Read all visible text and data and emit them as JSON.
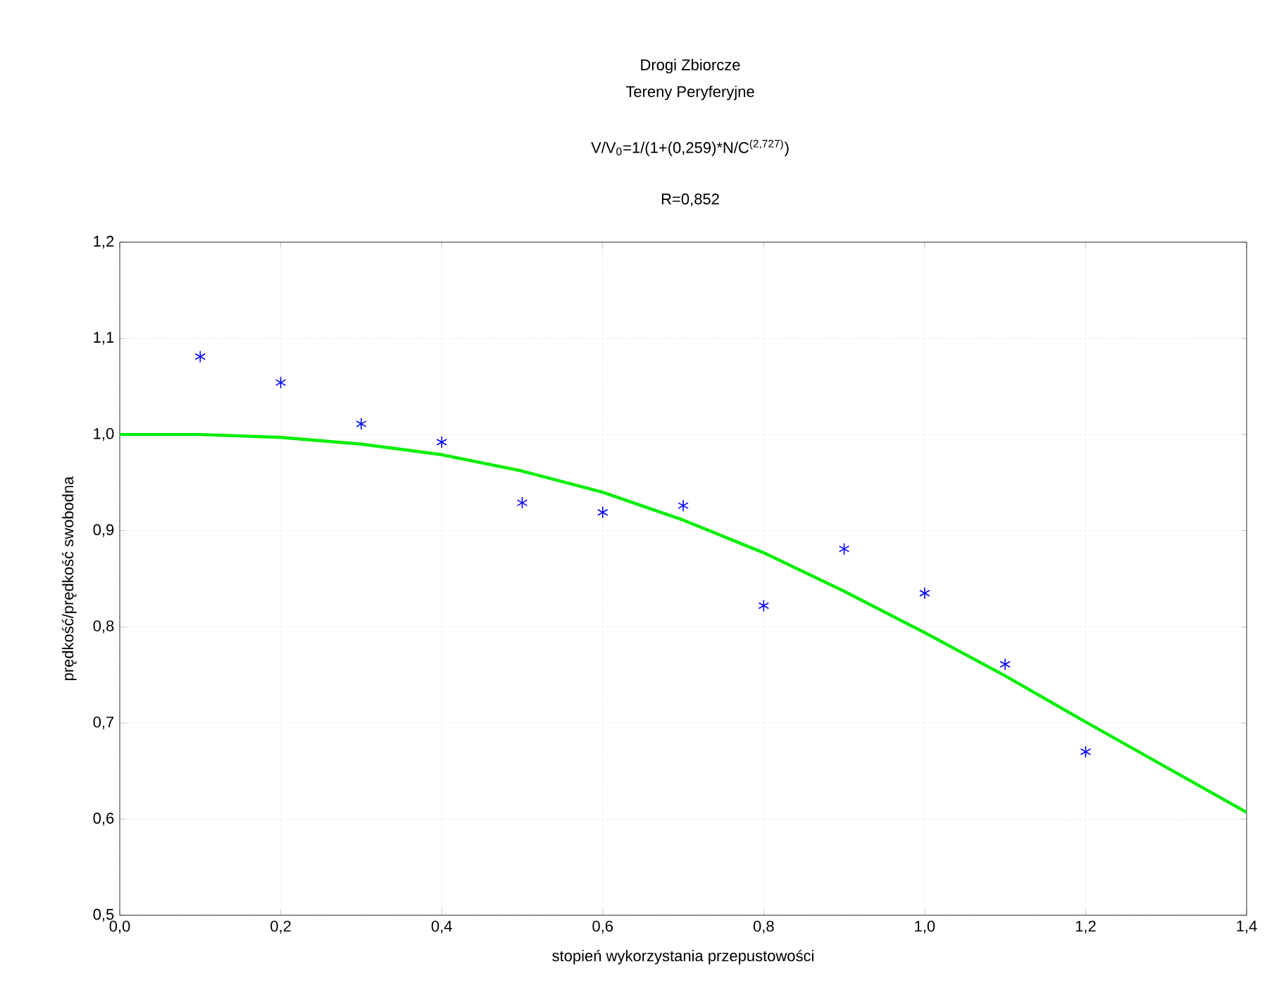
{
  "chart_data": {
    "type": "scatter",
    "title": "Drogi Zbiorcze",
    "subtitle": "Tereny Peryferyjne",
    "annotations": [
      "V/V$_{0}$=1/(1+(0,259)*N/C$^{(2,727)}$)",
      "R=0,852"
    ],
    "xlabel": "stopień wykorzystania przepustowości",
    "ylabel": "prędkość/prędkość swobodna",
    "series": [
      {
        "color": "#0000ff",
        "marker": "cross",
        "x": [
          0.1,
          0.2,
          0.3,
          0.4,
          0.5,
          0.6,
          0.7,
          0.8,
          0.9,
          1.0,
          1.1,
          1.2
        ],
        "values": [
          1.081,
          1.054,
          1.011,
          0.992,
          0.929,
          0.919,
          0.926,
          0.822,
          0.881,
          0.835,
          0.761,
          0.67
        ]
      },
      {
        "type": "line",
        "color": "#00ee00",
        "marker": "none",
        "line_style": "solid",
        "x": [
          0,
          0.1,
          0.2,
          0.3,
          0.4,
          0.5,
          0.6,
          0.7,
          0.8,
          0.9,
          1.0,
          1.1,
          1.2,
          1.3,
          1.4
        ],
        "values": [
          1.0,
          1.0,
          0.997,
          0.99,
          0.979,
          0.962,
          0.94,
          0.911,
          0.877,
          0.837,
          0.794,
          0.749,
          0.701,
          0.654,
          0.607
        ]
      }
    ],
    "xlim": [
      0,
      1.4
    ],
    "ylim": [
      0.5,
      1.2
    ],
    "xticks": [
      {
        "value": 0,
        "label": "0,0"
      },
      {
        "value": 0.2,
        "label": "0,2"
      },
      {
        "value": 0.4,
        "label": "0,4"
      },
      {
        "value": 0.6,
        "label": "0,6"
      },
      {
        "value": 0.8,
        "label": "0,8"
      },
      {
        "value": 1.0,
        "label": "1,0"
      },
      {
        "value": 1.2,
        "label": "1,2"
      },
      {
        "value": 1.4,
        "label": "1,4"
      }
    ],
    "yticks": [
      {
        "value": 0.5,
        "label": "0,5"
      },
      {
        "value": 0.6,
        "label": "0,6"
      },
      {
        "value": 0.7,
        "label": "0,7"
      },
      {
        "value": 0.8,
        "label": "0,8"
      },
      {
        "value": 0.9,
        "label": "0,9"
      },
      {
        "value": 1.0,
        "label": "1,0"
      },
      {
        "value": 1.1,
        "label": "1,1"
      },
      {
        "value": 1.2,
        "label": "1,2"
      }
    ],
    "grid": true
  }
}
